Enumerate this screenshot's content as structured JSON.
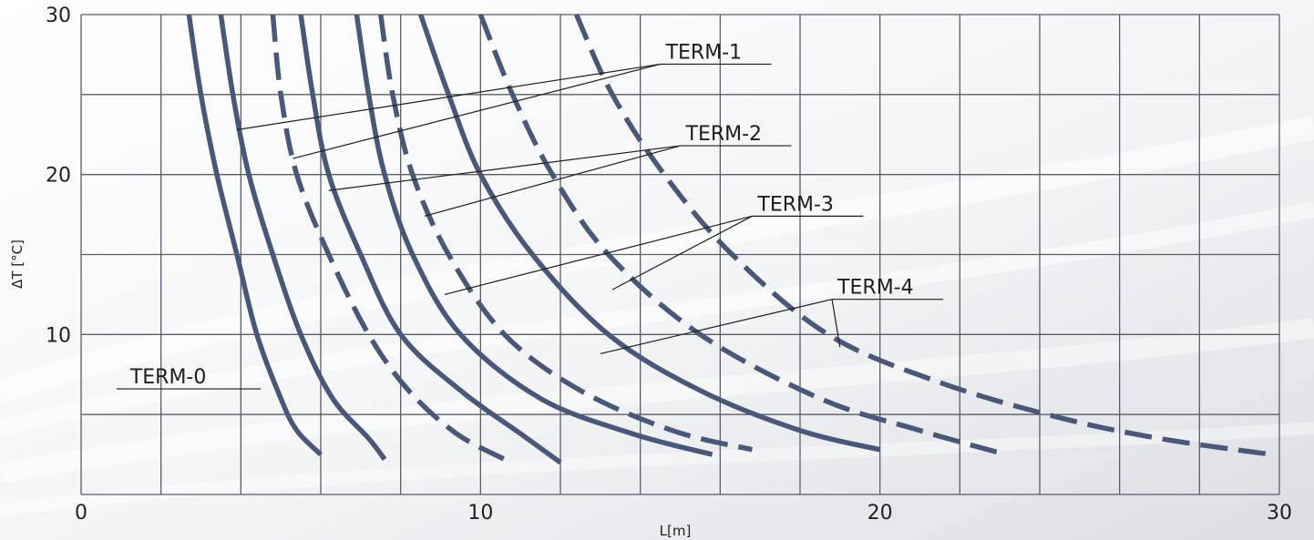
{
  "chart_data": {
    "type": "line",
    "xlabel": "L[m]",
    "ylabel": "ΔT [°C]",
    "xlim": [
      0,
      30
    ],
    "ylim": [
      0,
      30
    ],
    "x_ticks": [
      0,
      10,
      20,
      30
    ],
    "y_ticks": [
      10,
      20,
      30
    ],
    "x_gridlines": [
      0,
      2,
      4,
      6,
      8,
      10,
      12,
      14,
      16,
      18,
      20,
      22,
      24,
      26,
      28,
      30
    ],
    "y_gridlines": [
      0,
      5,
      10,
      15,
      20,
      25,
      30
    ],
    "grid": true,
    "series": [
      {
        "id": "c1",
        "dash": false,
        "points": [
          [
            2.7,
            30
          ],
          [
            3.0,
            25
          ],
          [
            3.4,
            20
          ],
          [
            3.9,
            15
          ],
          [
            4.4,
            10
          ],
          [
            5.0,
            6
          ],
          [
            5.4,
            4
          ],
          [
            6.0,
            2.5
          ]
        ]
      },
      {
        "id": "c2",
        "dash": false,
        "points": [
          [
            3.5,
            30
          ],
          [
            3.8,
            25
          ],
          [
            4.2,
            20
          ],
          [
            4.8,
            15
          ],
          [
            5.5,
            10
          ],
          [
            6.3,
            6
          ],
          [
            7.2,
            3.5
          ],
          [
            7.6,
            2.2
          ]
        ]
      },
      {
        "id": "c3",
        "dash": true,
        "points": [
          [
            4.8,
            30
          ],
          [
            5.0,
            25
          ],
          [
            5.4,
            20
          ],
          [
            6.2,
            15
          ],
          [
            7.2,
            10
          ],
          [
            8.2,
            6.5
          ],
          [
            9.4,
            3.8
          ],
          [
            10.6,
            2.2
          ]
        ]
      },
      {
        "id": "c4",
        "dash": false,
        "points": [
          [
            5.5,
            30
          ],
          [
            5.8,
            25
          ],
          [
            6.2,
            20
          ],
          [
            7.0,
            15
          ],
          [
            8.0,
            10
          ],
          [
            9.5,
            6.5
          ],
          [
            11.0,
            3.8
          ],
          [
            12.0,
            2.0
          ]
        ]
      },
      {
        "id": "c5",
        "dash": false,
        "points": [
          [
            6.9,
            30
          ],
          [
            7.2,
            25
          ],
          [
            7.6,
            20
          ],
          [
            8.3,
            15
          ],
          [
            9.5,
            10
          ],
          [
            11.5,
            6.0
          ],
          [
            13.8,
            3.8
          ],
          [
            15.8,
            2.5
          ]
        ]
      },
      {
        "id": "c6",
        "dash": true,
        "points": [
          [
            7.5,
            30
          ],
          [
            7.8,
            25
          ],
          [
            8.3,
            20
          ],
          [
            9.2,
            15
          ],
          [
            10.6,
            10
          ],
          [
            12.5,
            6.5
          ],
          [
            14.8,
            4.0
          ],
          [
            16.8,
            2.8
          ]
        ]
      },
      {
        "id": "c7",
        "dash": false,
        "points": [
          [
            8.5,
            30
          ],
          [
            9.2,
            25
          ],
          [
            10.0,
            20
          ],
          [
            11.3,
            15
          ],
          [
            13.2,
            10
          ],
          [
            15.5,
            6.5
          ],
          [
            18.0,
            4.0
          ],
          [
            20.0,
            2.8
          ]
        ]
      },
      {
        "id": "c8",
        "dash": true,
        "points": [
          [
            10.0,
            30
          ],
          [
            10.8,
            25
          ],
          [
            11.8,
            20
          ],
          [
            13.2,
            15
          ],
          [
            15.5,
            10
          ],
          [
            18.5,
            6.0
          ],
          [
            21.0,
            4.0
          ],
          [
            23.0,
            2.6
          ]
        ]
      },
      {
        "id": "c9",
        "dash": true,
        "points": [
          [
            12.4,
            30
          ],
          [
            13.3,
            25
          ],
          [
            14.6,
            20
          ],
          [
            16.3,
            15
          ],
          [
            18.7,
            10
          ],
          [
            21.5,
            7.0
          ],
          [
            24.5,
            4.8
          ],
          [
            27.0,
            3.5
          ],
          [
            29.8,
            2.5
          ]
        ]
      }
    ],
    "annotations": [
      {
        "label": "TERM-0",
        "anchor": [
          1.0,
          6.6
        ],
        "pointers": [
          [
            4.5,
            6.6
          ]
        ]
      },
      {
        "label": "TERM-1",
        "anchor": [
          14.5,
          26.9
        ],
        "pointers": [
          [
            3.9,
            22.8
          ],
          [
            5.3,
            21.0
          ]
        ]
      },
      {
        "label": "TERM-2",
        "anchor": [
          15.0,
          21.8
        ],
        "pointers": [
          [
            6.2,
            19.0
          ],
          [
            8.6,
            17.4
          ]
        ]
      },
      {
        "label": "TERM-3",
        "anchor": [
          16.8,
          17.4
        ],
        "pointers": [
          [
            9.1,
            12.5
          ],
          [
            13.3,
            12.8
          ]
        ]
      },
      {
        "label": "TERM-4",
        "anchor": [
          18.8,
          12.2
        ],
        "pointers": [
          [
            13.0,
            8.8
          ],
          [
            19.0,
            9.2
          ]
        ]
      }
    ],
    "colors": {
      "curve": "#48587a",
      "grid": "#585d6a",
      "leader": "#1e1e1e",
      "text": "#222222"
    }
  }
}
